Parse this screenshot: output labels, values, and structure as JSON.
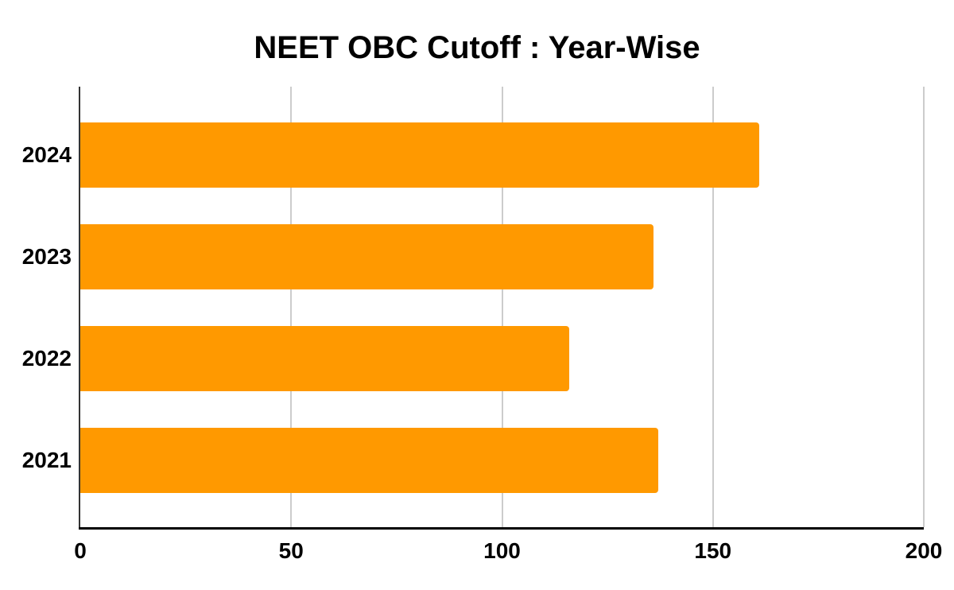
{
  "chart_data": {
    "type": "bar",
    "orientation": "horizontal",
    "title": "NEET OBC Cutoff : Year-Wise",
    "categories": [
      "2024",
      "2023",
      "2022",
      "2021"
    ],
    "values": [
      161,
      136,
      116,
      137
    ],
    "xlabel": "",
    "ylabel": "",
    "xlim": [
      0,
      200
    ],
    "x_ticks": [
      0,
      50,
      100,
      150,
      200
    ],
    "legend": "none",
    "grid": "vertical-only",
    "bar_color": "#FF9900",
    "gridline_color": "#cccccc",
    "y_axis_line_color": "#333333",
    "x_axis_line_color": "#000000",
    "text_color": "#000000",
    "background_color": "#ffffff"
  }
}
